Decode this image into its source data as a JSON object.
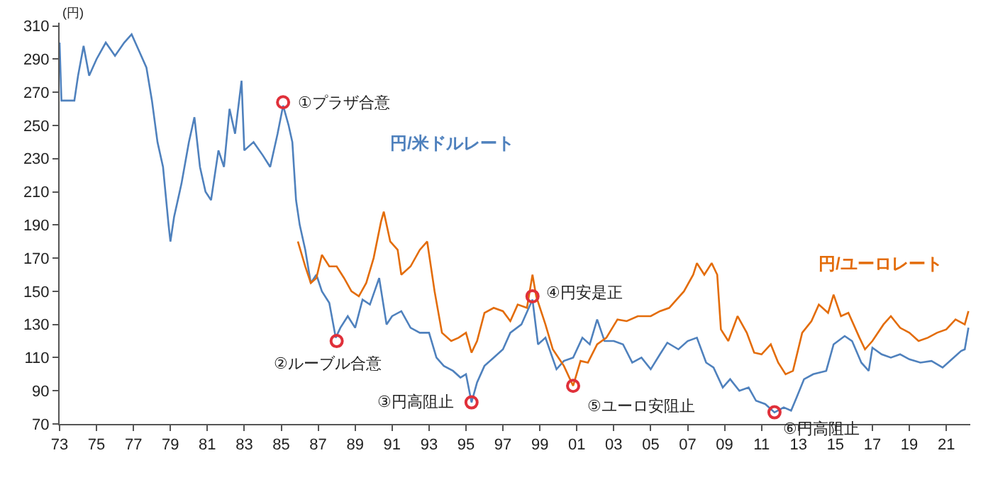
{
  "chart_data": {
    "type": "line",
    "ylabel": "(円)",
    "xlim": [
      1973,
      2022.3
    ],
    "ylim": [
      70,
      312
    ],
    "xticks": [
      {
        "value": 1973,
        "label": "73"
      },
      {
        "value": 1975,
        "label": "75"
      },
      {
        "value": 1977,
        "label": "77"
      },
      {
        "value": 1979,
        "label": "79"
      },
      {
        "value": 1981,
        "label": "81"
      },
      {
        "value": 1983,
        "label": "83"
      },
      {
        "value": 1985,
        "label": "85"
      },
      {
        "value": 1987,
        "label": "87"
      },
      {
        "value": 1989,
        "label": "89"
      },
      {
        "value": 1991,
        "label": "91"
      },
      {
        "value": 1993,
        "label": "93"
      },
      {
        "value": 1995,
        "label": "95"
      },
      {
        "value": 1997,
        "label": "97"
      },
      {
        "value": 1999,
        "label": "99"
      },
      {
        "value": 2001,
        "label": "01"
      },
      {
        "value": 2003,
        "label": "03"
      },
      {
        "value": 2005,
        "label": "05"
      },
      {
        "value": 2007,
        "label": "07"
      },
      {
        "value": 2009,
        "label": "09"
      },
      {
        "value": 2011,
        "label": "11"
      },
      {
        "value": 2013,
        "label": "13"
      },
      {
        "value": 2015,
        "label": "15"
      },
      {
        "value": 2017,
        "label": "17"
      },
      {
        "value": 2019,
        "label": "19"
      },
      {
        "value": 2021,
        "label": "21"
      }
    ],
    "yticks": [
      70,
      90,
      110,
      130,
      150,
      170,
      190,
      210,
      230,
      250,
      270,
      290,
      310
    ],
    "grid": false,
    "legend": false,
    "line_style": "solid",
    "series": [
      {
        "name": "円/米ドルレート",
        "color": "#4f81bd",
        "marker": "none",
        "x": [
          1973.0,
          1973.1,
          1973.8,
          1974.0,
          1974.3,
          1974.6,
          1975.0,
          1975.5,
          1976.0,
          1976.5,
          1976.9,
          1977.3,
          1977.7,
          1978.0,
          1978.3,
          1978.6,
          1978.9,
          1979.0,
          1979.2,
          1979.6,
          1980.0,
          1980.3,
          1980.6,
          1980.9,
          1981.2,
          1981.6,
          1981.9,
          1982.2,
          1982.5,
          1982.85,
          1983.0,
          1983.5,
          1984.0,
          1984.4,
          1984.8,
          1985.1,
          1985.4,
          1985.6,
          1985.8,
          1986.0,
          1986.3,
          1986.6,
          1986.9,
          1987.2,
          1987.6,
          1987.95,
          1988.2,
          1988.6,
          1989.0,
          1989.4,
          1989.8,
          1990.3,
          1990.7,
          1991.0,
          1991.5,
          1992.0,
          1992.5,
          1993.0,
          1993.4,
          1993.8,
          1994.3,
          1994.7,
          1995.0,
          1995.3,
          1995.6,
          1996.0,
          1996.5,
          1997.0,
          1997.4,
          1998.0,
          1998.6,
          1998.9,
          1999.3,
          1999.9,
          2000.3,
          2000.8,
          2001.3,
          2001.7,
          2002.1,
          2002.5,
          2003.0,
          2003.5,
          2004.0,
          2004.5,
          2005.0,
          2005.5,
          2005.9,
          2006.5,
          2007.0,
          2007.5,
          2008.0,
          2008.4,
          2008.9,
          2009.3,
          2009.8,
          2010.3,
          2010.7,
          2011.2,
          2011.7,
          2012.2,
          2012.6,
          2012.9,
          2013.3,
          2013.8,
          2014.5,
          2014.9,
          2015.5,
          2015.9,
          2016.4,
          2016.8,
          2017.0,
          2017.5,
          2018.0,
          2018.5,
          2019.0,
          2019.6,
          2020.2,
          2020.8,
          2021.3,
          2021.8,
          2022.0,
          2022.2
        ],
        "values": [
          300,
          265,
          265,
          280,
          298,
          280,
          290,
          300,
          292,
          300,
          305,
          295,
          285,
          265,
          240,
          225,
          190,
          180,
          195,
          215,
          240,
          255,
          225,
          210,
          205,
          235,
          225,
          260,
          245,
          277,
          235,
          240,
          232,
          225,
          245,
          262,
          250,
          240,
          205,
          190,
          175,
          155,
          160,
          150,
          143,
          122,
          128,
          135,
          128,
          145,
          142,
          158,
          130,
          135,
          138,
          128,
          125,
          125,
          110,
          105,
          102,
          98,
          100,
          83,
          95,
          105,
          110,
          115,
          125,
          130,
          145,
          118,
          122,
          103,
          108,
          110,
          122,
          118,
          133,
          120,
          120,
          118,
          107,
          110,
          103,
          112,
          119,
          115,
          120,
          122,
          107,
          104,
          92,
          97,
          90,
          92,
          84,
          82,
          77,
          80,
          78,
          86,
          97,
          100,
          102,
          118,
          123,
          120,
          107,
          102,
          116,
          112,
          110,
          112,
          109,
          107,
          108,
          104,
          109,
          114,
          115,
          128
        ]
      },
      {
        "name": "円/ユーロレート",
        "color": "#e36c09",
        "marker": "none",
        "x": [
          1985.9,
          1986.3,
          1986.6,
          1986.9,
          1987.2,
          1987.6,
          1988.0,
          1988.4,
          1988.8,
          1989.2,
          1989.6,
          1990.0,
          1990.4,
          1990.55,
          1990.9,
          1991.3,
          1991.5,
          1992.0,
          1992.5,
          1992.9,
          1993.3,
          1993.7,
          1994.2,
          1994.6,
          1995.0,
          1995.3,
          1995.6,
          1996.0,
          1996.5,
          1997.0,
          1997.4,
          1997.8,
          1998.3,
          1998.6,
          1998.8,
          1999.3,
          1999.7,
          2000.3,
          2000.8,
          2001.2,
          2001.6,
          2002.1,
          2002.6,
          2003.2,
          2003.7,
          2004.3,
          2005.0,
          2005.5,
          2006.0,
          2006.8,
          2007.3,
          2007.5,
          2007.9,
          2008.3,
          2008.6,
          2008.8,
          2009.2,
          2009.7,
          2010.2,
          2010.6,
          2011.0,
          2011.5,
          2011.9,
          2012.3,
          2012.7,
          2013.2,
          2013.7,
          2014.1,
          2014.6,
          2014.9,
          2015.3,
          2015.7,
          2016.3,
          2016.6,
          2017.0,
          2017.6,
          2018.0,
          2018.5,
          2019.0,
          2019.5,
          2020.0,
          2020.5,
          2021.0,
          2021.5,
          2022.0,
          2022.2
        ],
        "values": [
          180,
          165,
          155,
          158,
          172,
          165,
          165,
          158,
          150,
          147,
          155,
          170,
          192,
          198,
          180,
          175,
          160,
          165,
          175,
          180,
          150,
          125,
          120,
          122,
          125,
          113,
          120,
          137,
          140,
          138,
          132,
          142,
          140,
          160,
          147,
          130,
          115,
          105,
          93,
          108,
          107,
          118,
          122,
          133,
          132,
          135,
          135,
          138,
          140,
          150,
          160,
          167,
          160,
          167,
          160,
          127,
          120,
          135,
          125,
          113,
          112,
          118,
          107,
          100,
          102,
          125,
          132,
          142,
          137,
          148,
          135,
          137,
          122,
          115,
          120,
          130,
          135,
          128,
          125,
          120,
          122,
          125,
          127,
          133,
          130,
          138
        ]
      },
      {
        "type": "scatter",
        "color": "#e0303a",
        "marker": "circle",
        "x": [
          1985.1,
          1988.0,
          1995.3,
          1998.6,
          2000.8,
          2011.7
        ],
        "values": [
          264,
          120,
          83,
          147,
          93,
          77
        ]
      }
    ],
    "annotations": [
      {
        "text": "①プラザ合意",
        "x": 1985.1,
        "y": 264
      },
      {
        "text": "②ルーブル合意",
        "x": 1988.0,
        "y": 120
      },
      {
        "text": "③円高阻止",
        "x": 1995.3,
        "y": 83
      },
      {
        "text": "④円安是正",
        "x": 1998.6,
        "y": 147
      },
      {
        "text": "⑤ユーロ安阻止",
        "x": 2000.8,
        "y": 93
      },
      {
        "text": "⑥円高阻止",
        "x": 2011.7,
        "y": 77
      }
    ]
  }
}
